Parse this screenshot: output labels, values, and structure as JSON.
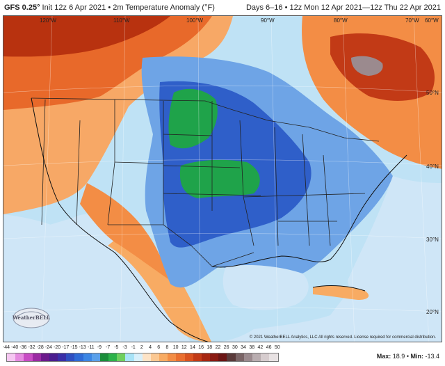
{
  "header": {
    "model": "GFS 0.25°",
    "init": "Init 12z 6 Apr 2021 • 2m Temperature Anomaly (°F)",
    "valid": "Days 6–16 • 12z Mon 12 Apr 2021—12z Thu 22 Apr 2021"
  },
  "map": {
    "longitude_labels": [
      "120°W",
      "110°W",
      "100°W",
      "90°W",
      "80°W",
      "70°W",
      "60°W"
    ],
    "latitude_labels": [
      "50°N",
      "40°N",
      "30°N",
      "20°N"
    ],
    "copyright": "© 2021 WeatherBELL Analytics, LLC All rights reserved. License required for commercial distribution.",
    "logo_text": "WeatherBELL",
    "colors": {
      "ocean": "#cfe6f7",
      "strong_warm": "#b8320f",
      "warm": "#e8692a",
      "mild_warm": "#f7a866",
      "near_normal_cool": "#bfe2f5",
      "cool": "#6ea4e6",
      "cold": "#2f5fc9",
      "coldest": "#1fa34a",
      "peak_warm": "#9b8a8e"
    }
  },
  "colorbar": {
    "ticks": [
      "-44",
      "-40",
      "-36",
      "-32",
      "-28",
      "-24",
      "-20",
      "-17",
      "-15",
      "-13",
      "-11",
      "-9",
      "-7",
      "-5",
      "-3",
      "-1",
      "2",
      "4",
      "6",
      "8",
      "10",
      "12",
      "14",
      "16",
      "18",
      "22",
      "26",
      "30",
      "34",
      "38",
      "42",
      "46",
      "50"
    ],
    "colors": [
      "#f6c7f2",
      "#e58be0",
      "#c84cc4",
      "#9b2aa3",
      "#6c1a8c",
      "#4b1d8f",
      "#3a2fa8",
      "#2f4fc1",
      "#2f6bd6",
      "#3c86e4",
      "#5aa0ea",
      "#1a8e3a",
      "#2db24a",
      "#6fcf5e",
      "#a8e3f7",
      "#d8f0fb",
      "#fde3c6",
      "#fbc892",
      "#f8ab63",
      "#f38d45",
      "#ea6f2f",
      "#d9521f",
      "#c23a16",
      "#a72611",
      "#8a1a12",
      "#6b1514",
      "#5a3a3a",
      "#7a6466",
      "#9b8a8e",
      "#b9adb0",
      "#d6ccce",
      "#e8e2e3"
    ],
    "max_label": "Max:",
    "max_value": "18.9",
    "min_label": "Min:",
    "min_value": "-13.4"
  }
}
